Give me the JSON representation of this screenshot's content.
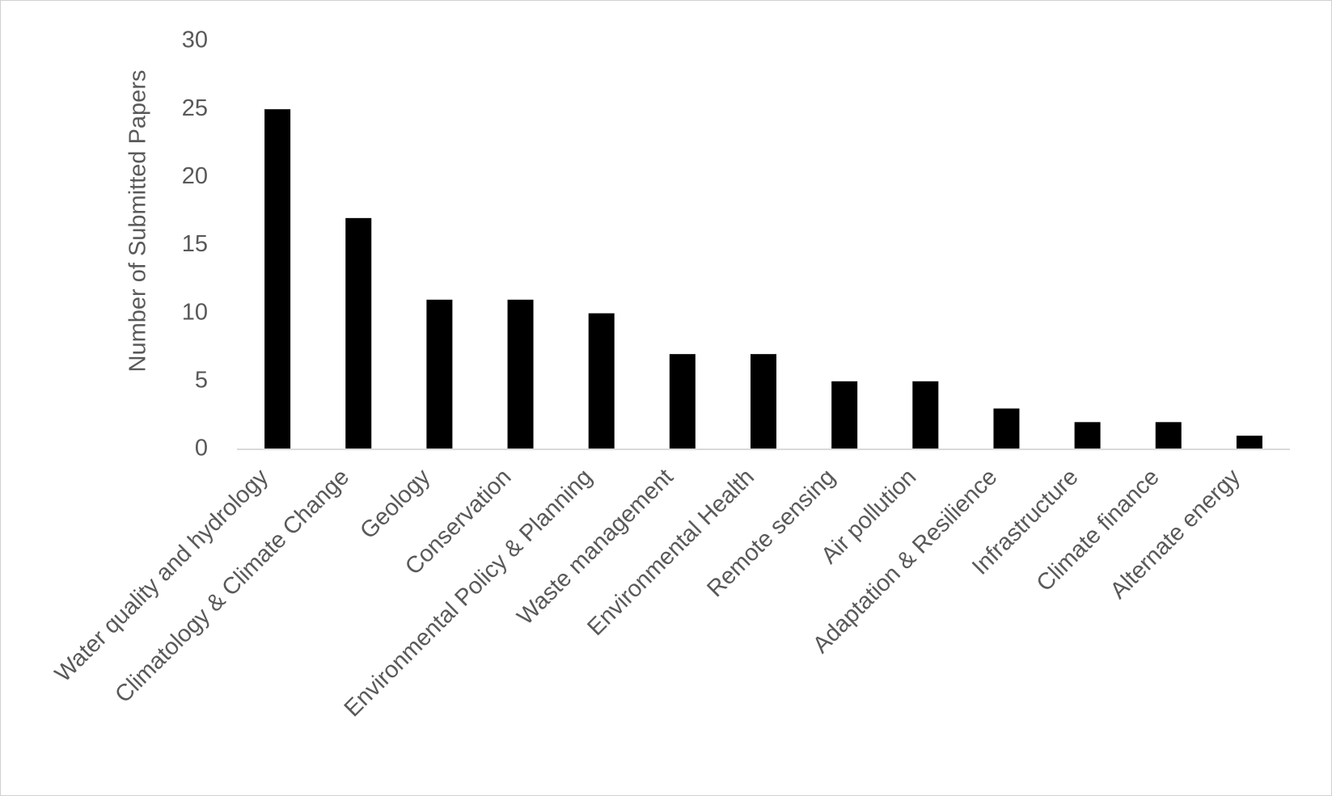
{
  "chart_data": {
    "type": "bar",
    "title": "",
    "xlabel": "",
    "ylabel": "Number of Submitted Papers",
    "ylim": [
      0,
      30
    ],
    "yticks": [
      0,
      5,
      10,
      15,
      20,
      25,
      30
    ],
    "grid": false,
    "legend": "none",
    "bar_color": "#000000",
    "axis_color": "#d9d9d9",
    "text_color": "#595959",
    "categories": [
      "Water quality and hydrology",
      "Climatology & Climate Change",
      "Geology",
      "Conservation",
      "Environmental Policy & Planning",
      "Waste management",
      "Environmental Health",
      "Remote sensing",
      "Air pollution",
      "Adaptation & Resilience",
      "Infrastructure",
      "Climate finance",
      "Alternate energy"
    ],
    "values": [
      25,
      17,
      11,
      11,
      10,
      7,
      7,
      5,
      5,
      3,
      2,
      2,
      1
    ]
  }
}
